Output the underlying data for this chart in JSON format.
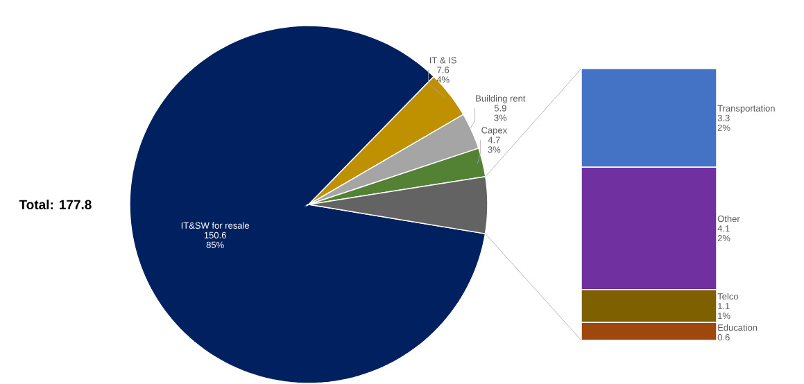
{
  "chart_data": [
    {
      "type": "pie",
      "categories": [
        "IT&SW for resale",
        "IT & IS",
        "Building rent",
        "Capex",
        null
      ],
      "values": [
        84.7,
        4.3,
        3.3,
        2.6,
        5.1
      ],
      "colors": [
        "#002060",
        "#bf9000",
        "#a5a5a5",
        "#548235",
        "#636363"
      ],
      "value_labels": [
        [
          "150.6",
          "85%"
        ],
        [
          "7.6",
          "4%"
        ],
        [
          "5.9",
          "3%"
        ],
        [
          "4.7",
          "3%"
        ],
        null
      ],
      "annotations": [
        "Total: 177.8"
      ]
    },
    {
      "type": "bar",
      "stacked": true,
      "categories": [
        null
      ],
      "series": [
        {
          "name": "Education",
          "color": "#9e480e",
          "values": [
            0.6
          ],
          "value_labels": [
            "0.6"
          ]
        },
        {
          "name": "Telco",
          "color": "#7f6000",
          "values": [
            1.1
          ],
          "value_labels": [
            "1.1"
          ]
        },
        {
          "name": "Other",
          "color": "#7030a0",
          "values": [
            4.1
          ],
          "value_labels": [
            "4.1"
          ]
        },
        {
          "name": "Transportation",
          "color": "#4472c4",
          "values": [
            3.3
          ],
          "value_labels": [
            "3.3"
          ]
        }
      ],
      "annotations": [
        "2%",
        "2%",
        "1%"
      ]
    }
  ]
}
